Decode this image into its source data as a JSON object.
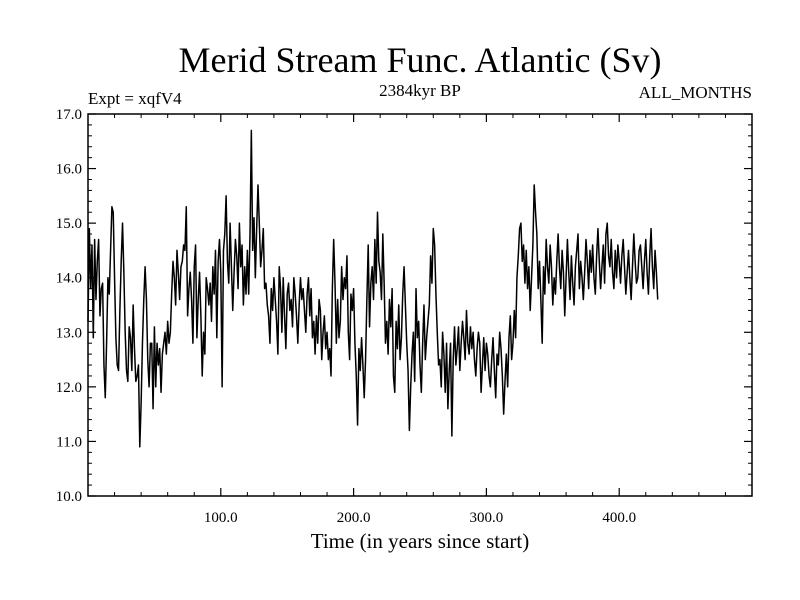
{
  "chart_data": {
    "type": "line",
    "title": "Merid Stream Func. Atlantic (Sv)",
    "subtitle_left": "Expt = xqfV4",
    "subtitle_center": "2384kyr BP",
    "subtitle_right": "ALL_MONTHS",
    "xlabel": "Time (in years since start)",
    "ylabel": "",
    "xlim": [
      0,
      500
    ],
    "ylim": [
      10.0,
      17.0
    ],
    "x_ticks": [
      100,
      200,
      300,
      400
    ],
    "x_tick_labels": [
      "100.0",
      "200.0",
      "300.0",
      "400.0"
    ],
    "y_ticks": [
      10,
      11,
      12,
      13,
      14,
      15,
      16,
      17
    ],
    "y_tick_labels": [
      "10.0",
      "11.0",
      "12.0",
      "13.0",
      "14.0",
      "15.0",
      "16.0",
      "17.0"
    ],
    "grid": false,
    "series": [
      {
        "name": "Merid Stream Func. Atlantic",
        "color": "#000000",
        "x_start": 0,
        "x_step": 1,
        "values": [
          13.2,
          14.9,
          13.8,
          14.6,
          12.9,
          14.7,
          13.6,
          14.3,
          14.7,
          13.3,
          13.8,
          13.9,
          12.4,
          11.8,
          12.8,
          14.0,
          13.7,
          14.5,
          15.3,
          15.2,
          14.0,
          12.9,
          12.4,
          12.3,
          13.4,
          14.3,
          15.0,
          14.1,
          13.0,
          12.3,
          12.1,
          13.1,
          12.9,
          12.3,
          13.5,
          12.7,
          12.1,
          12.2,
          12.4,
          10.9,
          11.7,
          12.8,
          13.6,
          14.2,
          13.6,
          12.5,
          12.0,
          12.8,
          12.8,
          11.6,
          13.1,
          12.0,
          12.8,
          12.4,
          12.7,
          11.9,
          12.6,
          12.8,
          13.0,
          12.6,
          13.2,
          12.8,
          13.0,
          13.7,
          14.3,
          14.0,
          13.5,
          14.5,
          14.1,
          13.6,
          14.2,
          14.3,
          14.6,
          14.5,
          15.3,
          13.3,
          13.8,
          14.1,
          13.6,
          12.8,
          14.2,
          14.6,
          12.9,
          13.6,
          14.1,
          13.3,
          12.2,
          13.0,
          12.6,
          14.0,
          13.8,
          13.5,
          13.9,
          13.2,
          14.2,
          13.7,
          14.5,
          12.9,
          14.3,
          14.7,
          14.1,
          12.0,
          14.5,
          14.8,
          15.5,
          14.3,
          13.9,
          15.0,
          14.2,
          13.4,
          14.1,
          14.7,
          14.4,
          13.8,
          15.0,
          14.2,
          14.6,
          13.5,
          14.2,
          13.7,
          14.5,
          13.7,
          14.8,
          16.7,
          14.5,
          15.1,
          14.0,
          14.9,
          15.7,
          15.0,
          14.2,
          14.5,
          14.9,
          13.8,
          13.9,
          13.5,
          13.3,
          12.8,
          13.8,
          13.4,
          14.0,
          13.6,
          13.2,
          12.6,
          14.2,
          13.8,
          13.0,
          14.0,
          13.3,
          12.7,
          13.7,
          13.9,
          13.4,
          13.6,
          13.1,
          14.0,
          13.7,
          13.3,
          12.8,
          13.5,
          14.0,
          13.6,
          13.8,
          13.4,
          13.0,
          13.7,
          14.0,
          13.3,
          13.8,
          12.9,
          13.2,
          12.6,
          13.3,
          12.8,
          13.6,
          13.4,
          12.5,
          13.0,
          13.3,
          12.7,
          13.0,
          12.5,
          12.7,
          12.2,
          13.8,
          14.7,
          13.9,
          12.8,
          13.6,
          12.9,
          13.2,
          14.2,
          13.6,
          14.0,
          13.8,
          14.4,
          13.0,
          12.5,
          13.7,
          13.4,
          13.8,
          12.8,
          12.2,
          11.3,
          12.7,
          12.3,
          12.9,
          12.4,
          11.8,
          12.5,
          13.6,
          14.6,
          13.1,
          13.9,
          14.2,
          13.6,
          14.7,
          13.9,
          15.2,
          14.3,
          14.1,
          13.6,
          14.8,
          13.9,
          12.8,
          13.2,
          12.6,
          13.6,
          13.1,
          13.8,
          12.2,
          11.9,
          13.2,
          12.7,
          13.5,
          12.5,
          12.9,
          13.7,
          14.2,
          13.5,
          12.8,
          12.3,
          11.2,
          12.0,
          12.6,
          13.0,
          12.1,
          13.8,
          12.9,
          13.2,
          12.4,
          11.9,
          12.8,
          13.5,
          12.5,
          12.9,
          13.2,
          13.5,
          14.4,
          13.9,
          14.9,
          14.6,
          13.7,
          13.0,
          12.4,
          12.5,
          12.0,
          13.0,
          12.6,
          11.9,
          12.8,
          11.6,
          12.3,
          12.8,
          11.1,
          12.5,
          13.1,
          12.4,
          12.7,
          13.1,
          12.3,
          12.8,
          13.2,
          12.9,
          12.5,
          13.4,
          12.8,
          12.6,
          13.1,
          12.7,
          13.0,
          12.5,
          12.2,
          12.7,
          13.0,
          12.8,
          11.9,
          12.4,
          12.9,
          12.3,
          12.8,
          12.6,
          12.2,
          12.0,
          12.5,
          12.9,
          12.3,
          11.8,
          12.6,
          12.4,
          13.0,
          12.7,
          12.2,
          11.5,
          12.1,
          12.6,
          12.0,
          12.9,
          13.3,
          12.5,
          12.8,
          13.4,
          12.9,
          14.0,
          14.4,
          14.9,
          15.0,
          14.3,
          14.6,
          13.9,
          14.5,
          13.8,
          14.2,
          13.4,
          14.0,
          14.6,
          15.7,
          15.2,
          14.8,
          13.8,
          14.3,
          13.6,
          12.8,
          14.2,
          13.7,
          14.7,
          14.2,
          13.9,
          14.6,
          14.2,
          13.5,
          14.0,
          13.7,
          14.3,
          14.8,
          14.2,
          13.8,
          14.5,
          14.1,
          13.3,
          14.0,
          14.7,
          14.1,
          13.6,
          14.4,
          13.9,
          13.5,
          14.2,
          14.5,
          14.8,
          13.8,
          14.3,
          14.0,
          13.6,
          14.1,
          14.7,
          14.3,
          13.8,
          14.5,
          14.1,
          14.6,
          14.0,
          13.7,
          14.4,
          14.9,
          14.3,
          13.8,
          14.2,
          14.6,
          13.9,
          14.8,
          15.0,
          14.4,
          14.2,
          14.7,
          14.1,
          13.8,
          14.5,
          14.0,
          14.6,
          14.3,
          13.9,
          14.4,
          14.7,
          14.2,
          13.7,
          14.1,
          14.5,
          14.0,
          13.6,
          14.2,
          14.8,
          14.3,
          13.9,
          14.0,
          14.5,
          14.6,
          14.2,
          13.8,
          14.3,
          14.7,
          14.1,
          13.7,
          14.4,
          14.9,
          14.2,
          13.8,
          14.5,
          14.1,
          13.6
        ]
      }
    ]
  }
}
